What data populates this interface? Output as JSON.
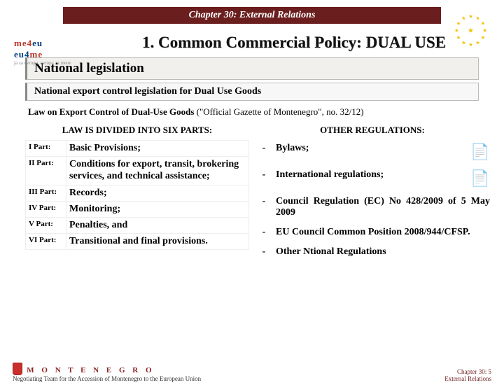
{
  "chapter_bar": "Chapter 30: External Relations",
  "main_title": "1. Common Commercial Policy: DUAL USE",
  "panel_h1": "National legislation",
  "panel_h2": "National export control legislation for Dual Use Goods",
  "law_prefix": "Law on Export Control of Dual-Use Goods ",
  "law_suffix": "(\"Official Gazette of Montenegro\", no. 32/12)",
  "left_head": "LAW IS DIVIDED INTO SIX PARTS:",
  "right_head": "OTHER REGULATIONS:",
  "parts": [
    {
      "label": "I Part:",
      "text": "Basic Provisions;",
      "cls": ""
    },
    {
      "label": "II Part:",
      "text": "Conditions for export, transit, brokering services, and technical assistance;",
      "cls": "small"
    },
    {
      "label": "III Part:",
      "text": "Records;",
      "cls": ""
    },
    {
      "label": "IV Part:",
      "text": "Monitoring;",
      "cls": ""
    },
    {
      "label": "V Part:",
      "text": "Penalties, and",
      "cls": ""
    },
    {
      "label": "VI Part:",
      "text": "Transitional and final provisions.",
      "cls": ""
    }
  ],
  "regs": [
    {
      "text": "Bylaws;",
      "icon": true,
      "just": false
    },
    {
      "text": "International regulations;",
      "icon": true,
      "just": false
    },
    {
      "text": "Council Regulation (EC) No 428/2009 of 5 May 2009",
      "icon": false,
      "just": true
    },
    {
      "text": "EU Council Common Position 2008/944/CFSP.",
      "icon": false,
      "just": false
    },
    {
      "text": "Other Ntional Regulations",
      "icon": false,
      "just": false
    }
  ],
  "footer": {
    "mn": "M O N T E N E G R O",
    "sub": "Negotiating Team for the Accession of Montenegro to the European Union",
    "r1": "Chapter 30:",
    "r2": "External Relations",
    "page": "5"
  },
  "colors": {
    "bar_bg": "#6b1e1e",
    "star": "#f2c200"
  }
}
